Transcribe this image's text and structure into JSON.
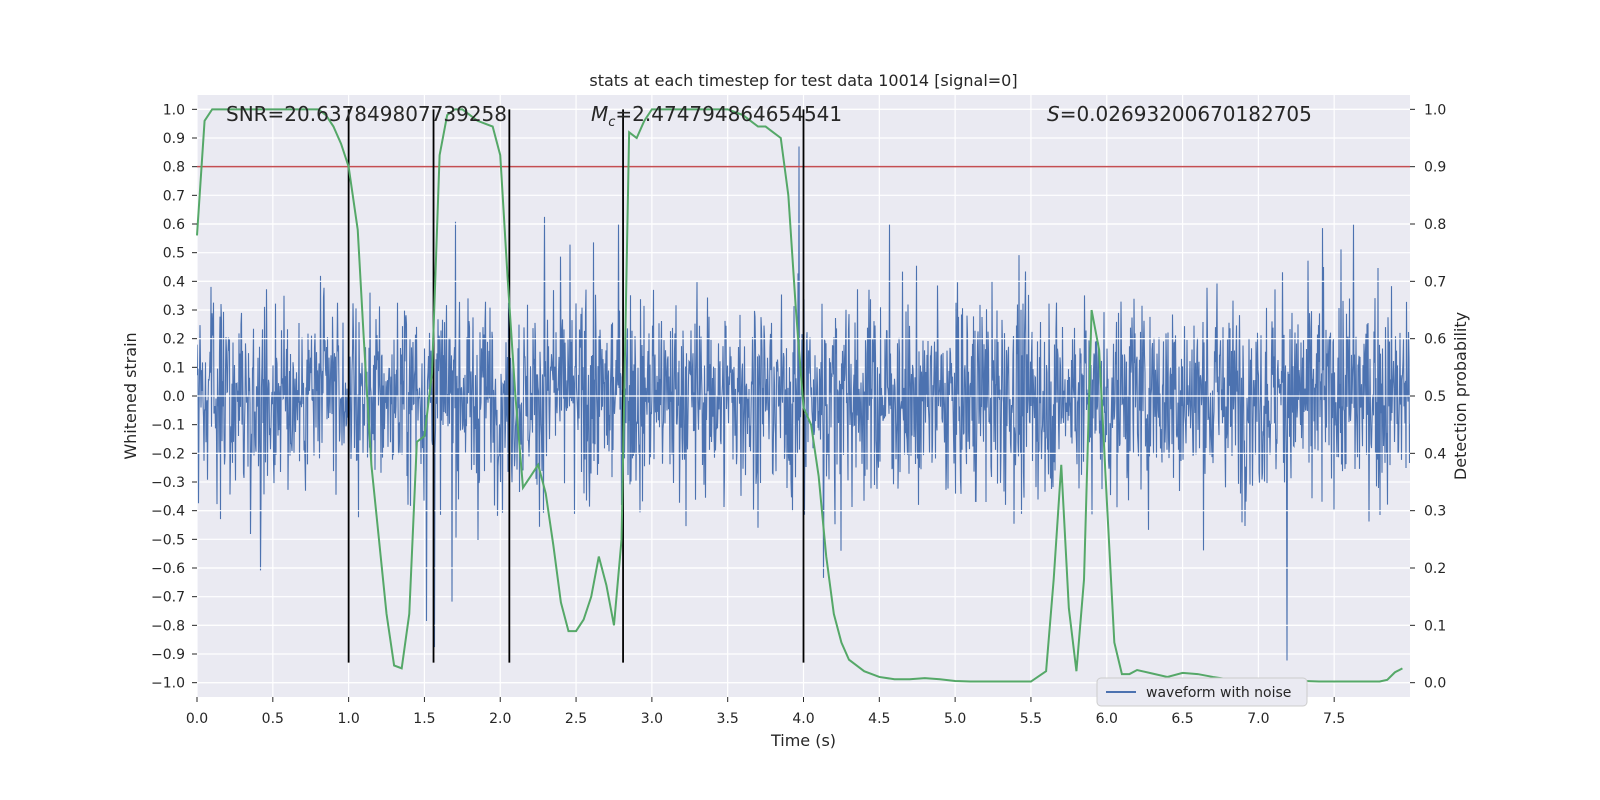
{
  "chart_data": {
    "type": "line",
    "title": "stats at each timestep for test data 10014 [signal=0]",
    "xlabel": "Time (s)",
    "ylabel": "Whitened strain",
    "ylabel_right": "Detection probability",
    "xlim": [
      0.0,
      8.0
    ],
    "ylim": [
      -1.05,
      1.05
    ],
    "ylim_right": [
      -0.025,
      1.025
    ],
    "x_ticks": [
      "0.0",
      "0.5",
      "1.0",
      "1.5",
      "2.0",
      "2.5",
      "3.0",
      "3.5",
      "4.0",
      "4.5",
      "5.0",
      "5.5",
      "6.0",
      "6.5",
      "7.0",
      "7.5"
    ],
    "y_ticks": [
      "1.0",
      "0.9",
      "0.8",
      "0.7",
      "0.6",
      "0.5",
      "0.4",
      "0.3",
      "0.2",
      "0.1",
      "0.0",
      "−0.1",
      "−0.2",
      "−0.3",
      "−0.4",
      "−0.5",
      "−0.6",
      "−0.7",
      "−0.8",
      "−0.9",
      "−1.0"
    ],
    "y_right_ticks": [
      "1.0",
      "0.9",
      "0.8",
      "0.7",
      "0.6",
      "0.5",
      "0.4",
      "0.3",
      "0.2",
      "0.1",
      "0.0"
    ],
    "grid": true,
    "annotations": {
      "snr": "SNR=20.637849807739258",
      "mc_symbol": "M",
      "mc_sub": "c",
      "mc_value": "=2.474794864654541",
      "s_symbol": "S",
      "s_value": "=0.02693200670182705"
    },
    "threshold_line": {
      "axis": "right",
      "y": 0.9,
      "color": "#c44e52"
    },
    "vertical_lines": [
      1.0,
      1.56,
      2.06,
      2.81,
      4.0
    ],
    "vertical_line_range": [
      -0.93,
      1.0
    ],
    "series": [
      {
        "name": "waveform with noise",
        "axis": "left",
        "color": "#4c72b0",
        "style": "dense noise, approx symmetric about 0, envelope about ±0.45 with spikes reaching ±0.99"
      },
      {
        "axis": "right",
        "color": "#55a868",
        "x": [
          0.0,
          0.05,
          0.1,
          0.15,
          0.2,
          0.3,
          0.4,
          0.5,
          0.6,
          0.7,
          0.8,
          0.85,
          0.9,
          0.95,
          1.0,
          1.06,
          1.1,
          1.15,
          1.2,
          1.25,
          1.3,
          1.35,
          1.4,
          1.45,
          1.5,
          1.55,
          1.6,
          1.65,
          1.7,
          1.75,
          1.8,
          1.85,
          1.9,
          1.95,
          2.0,
          2.05,
          2.1,
          2.15,
          2.2,
          2.25,
          2.3,
          2.35,
          2.4,
          2.45,
          2.5,
          2.55,
          2.6,
          2.65,
          2.7,
          2.75,
          2.8,
          2.85,
          2.9,
          2.95,
          3.0,
          3.05,
          3.1,
          3.2,
          3.3,
          3.4,
          3.5,
          3.6,
          3.7,
          3.75,
          3.8,
          3.85,
          3.9,
          3.95,
          4.0,
          4.05,
          4.1,
          4.15,
          4.2,
          4.25,
          4.3,
          4.35,
          4.4,
          4.45,
          4.5,
          4.6,
          4.7,
          4.8,
          4.9,
          5.0,
          5.1,
          5.2,
          5.3,
          5.4,
          5.5,
          5.6,
          5.65,
          5.7,
          5.75,
          5.8,
          5.85,
          5.9,
          5.95,
          6.0,
          6.05,
          6.1,
          6.15,
          6.2,
          6.3,
          6.4,
          6.5,
          6.6,
          6.7,
          6.8,
          6.9,
          7.0,
          7.1,
          7.2,
          7.3,
          7.4,
          7.5,
          7.6,
          7.7,
          7.8,
          7.85,
          7.9,
          7.95
        ],
        "y": [
          0.78,
          0.98,
          1.0,
          1.0,
          1.0,
          1.0,
          1.0,
          1.0,
          1.0,
          1.0,
          1.0,
          0.99,
          0.97,
          0.94,
          0.9,
          0.79,
          0.6,
          0.38,
          0.25,
          0.12,
          0.03,
          0.025,
          0.12,
          0.42,
          0.43,
          0.54,
          0.92,
          0.99,
          1.0,
          1.0,
          0.99,
          0.98,
          0.975,
          0.97,
          0.92,
          0.7,
          0.5,
          0.34,
          0.36,
          0.38,
          0.33,
          0.24,
          0.14,
          0.09,
          0.09,
          0.11,
          0.15,
          0.22,
          0.17,
          0.1,
          0.25,
          0.96,
          0.95,
          0.98,
          1.0,
          1.0,
          1.0,
          1.0,
          1.0,
          1.0,
          1.0,
          0.99,
          0.97,
          0.97,
          0.96,
          0.95,
          0.85,
          0.65,
          0.48,
          0.45,
          0.36,
          0.22,
          0.12,
          0.07,
          0.04,
          0.03,
          0.02,
          0.015,
          0.01,
          0.006,
          0.006,
          0.008,
          0.006,
          0.003,
          0.002,
          0.002,
          0.002,
          0.002,
          0.002,
          0.02,
          0.18,
          0.38,
          0.13,
          0.02,
          0.18,
          0.65,
          0.58,
          0.32,
          0.07,
          0.015,
          0.015,
          0.022,
          0.016,
          0.01,
          0.017,
          0.015,
          0.01,
          0.006,
          0.005,
          0.004,
          0.004,
          0.003,
          0.003,
          0.002,
          0.002,
          0.002,
          0.002,
          0.002,
          0.005,
          0.018,
          0.025
        ]
      }
    ],
    "legend": {
      "placement": "lower-center-right",
      "entries": [
        "waveform with noise"
      ]
    }
  }
}
